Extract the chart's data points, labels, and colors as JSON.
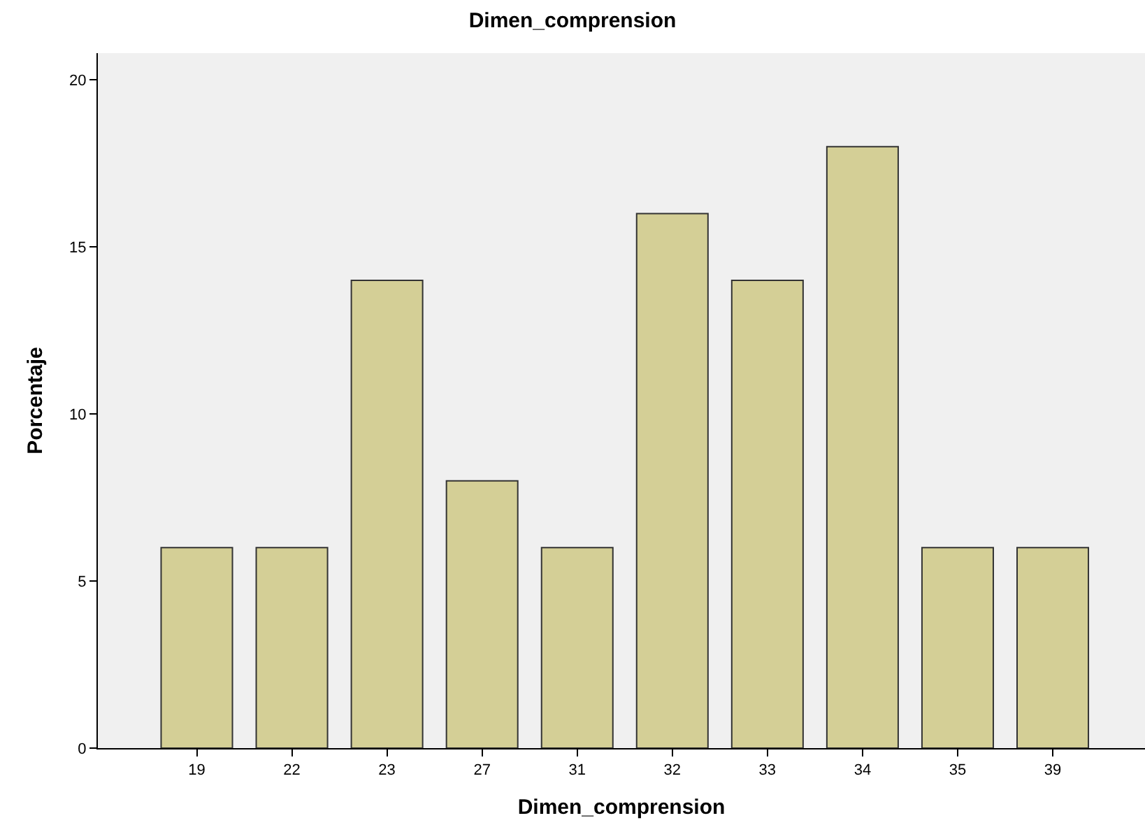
{
  "chart_data": {
    "type": "bar",
    "title": "Dimen_comprension",
    "xlabel": "Dimen_comprension",
    "ylabel": "Porcentaje",
    "categories": [
      "19",
      "22",
      "23",
      "27",
      "31",
      "32",
      "33",
      "34",
      "35",
      "39"
    ],
    "values": [
      6,
      6,
      14,
      8,
      6,
      16,
      14,
      18,
      6,
      6
    ],
    "color": "#d4cf96",
    "ylim": [
      0,
      20.8
    ],
    "yticks": [
      0,
      5,
      10,
      15,
      20
    ],
    "grid": false
  }
}
